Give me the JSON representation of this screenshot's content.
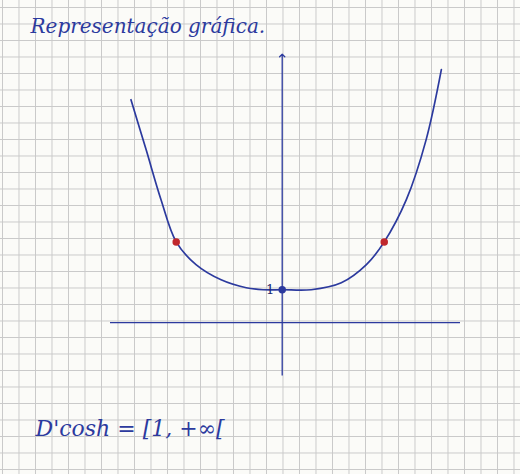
{
  "chart_data": {
    "type": "line",
    "title": "Representação gráfica.",
    "annotations": [
      "D'cosh = [1, +∞["
    ],
    "xlim": [
      -5.2,
      5.4
    ],
    "ylim": [
      -1.6,
      8.1
    ],
    "xticks": [],
    "yticks": [
      1
    ],
    "tick_labels": "y",
    "series": [
      {
        "type": "line",
        "color": "#2c3a9e",
        "x": [
          -4.58,
          -4.12,
          -3.67,
          -3.21,
          -2.61,
          -1.85,
          -1.09,
          -0.58,
          0,
          0.88,
          1.79,
          2.55,
          3.09,
          3.76,
          4.36,
          4.82
        ],
        "values": [
          6.76,
          5.24,
          3.73,
          2.45,
          1.76,
          1.3,
          1.06,
          1.0,
          1.0,
          1.0,
          1.21,
          1.76,
          2.45,
          3.73,
          5.55,
          7.67
        ]
      },
      {
        "type": "scatter",
        "color": "#c0282d",
        "x": [
          -3.21,
          3.09
        ],
        "values": [
          2.45,
          2.45
        ]
      },
      {
        "type": "scatter",
        "color": "#2c3a9e",
        "x": [
          0
        ],
        "values": [
          1.0
        ]
      }
    ]
  }
}
